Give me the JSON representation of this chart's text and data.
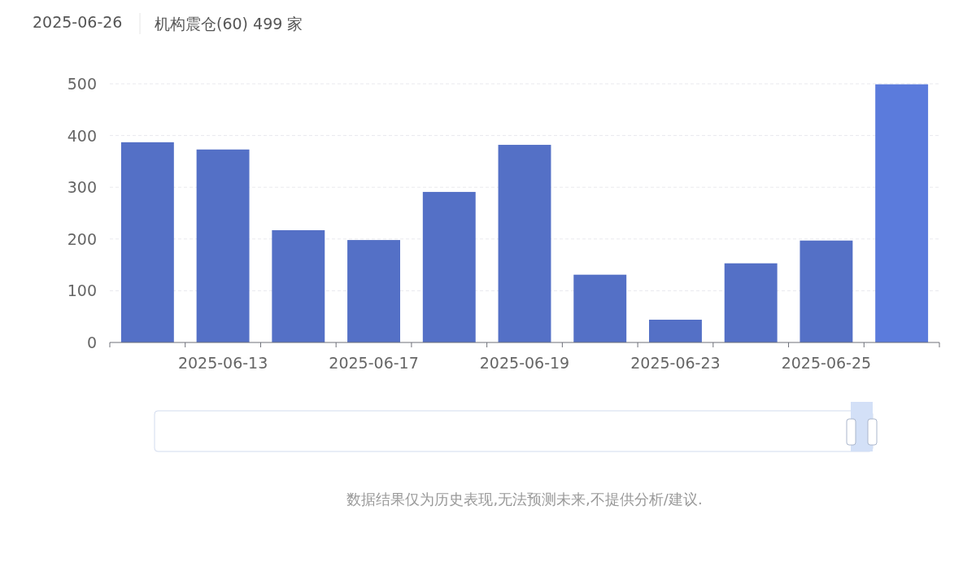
{
  "chart_data": {
    "type": "bar",
    "title": "2025-06-26",
    "subtitle": "机构震仓(60) 499 家",
    "categories": [
      null,
      "2025-06-13",
      null,
      "2025-06-17",
      null,
      "2025-06-19",
      null,
      "2025-06-23",
      null,
      "2025-06-25",
      null
    ],
    "values": [
      387,
      373,
      217,
      198,
      291,
      382,
      131,
      44,
      153,
      197,
      499
    ],
    "colors": [
      "#5470c6",
      "#5470c6",
      "#5470c6",
      "#5470c6",
      "#5470c6",
      "#5470c6",
      "#5470c6",
      "#5470c6",
      "#5470c6",
      "#5470c6",
      "#5b7bdc"
    ],
    "ylim": [
      0,
      500
    ],
    "yticks": [
      0,
      100,
      200,
      300,
      400,
      500
    ],
    "grid": "y",
    "annotations": [
      "数据结果仅为历史表现,无法预测未来,不提供分析/建议."
    ]
  }
}
